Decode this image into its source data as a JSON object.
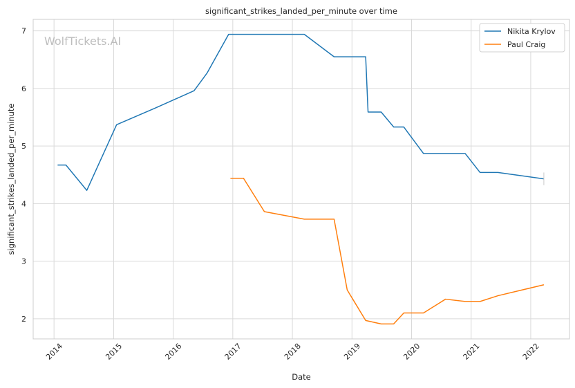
{
  "chart_data": {
    "type": "line",
    "title": "significant_strikes_landed_per_minute over time",
    "xlabel": "Date",
    "ylabel": "significant_strikes_landed_per_minute",
    "watermark": "WolfTickets.AI",
    "xlim": [
      2013.65,
      2022.65
    ],
    "ylim": [
      1.65,
      7.2
    ],
    "x_ticks": [
      {
        "value": 2014,
        "label": "2014"
      },
      {
        "value": 2015,
        "label": "2015"
      },
      {
        "value": 2016,
        "label": "2016"
      },
      {
        "value": 2017,
        "label": "2017"
      },
      {
        "value": 2018,
        "label": "2018"
      },
      {
        "value": 2019,
        "label": "2019"
      },
      {
        "value": 2020,
        "label": "2020"
      },
      {
        "value": 2021,
        "label": "2021"
      },
      {
        "value": 2022,
        "label": "2022"
      }
    ],
    "y_ticks": [
      {
        "value": 2,
        "label": "2"
      },
      {
        "value": 3,
        "label": "3"
      },
      {
        "value": 4,
        "label": "4"
      },
      {
        "value": 5,
        "label": "5"
      },
      {
        "value": 6,
        "label": "6"
      },
      {
        "value": 7,
        "label": "7"
      }
    ],
    "grid": true,
    "legend_position": "top-right",
    "series": [
      {
        "name": "Nikita Krylov",
        "color": "#1f77b4",
        "points": [
          [
            2014.06,
            4.67
          ],
          [
            2014.2,
            4.67
          ],
          [
            2014.55,
            4.23
          ],
          [
            2015.05,
            5.37
          ],
          [
            2015.7,
            5.66
          ],
          [
            2016.35,
            5.96
          ],
          [
            2016.57,
            6.27
          ],
          [
            2016.93,
            6.94
          ],
          [
            2018.2,
            6.94
          ],
          [
            2018.7,
            6.55
          ],
          [
            2019.23,
            6.55
          ],
          [
            2019.27,
            5.59
          ],
          [
            2019.49,
            5.59
          ],
          [
            2019.7,
            5.33
          ],
          [
            2019.87,
            5.33
          ],
          [
            2020.2,
            4.87
          ],
          [
            2020.9,
            4.87
          ],
          [
            2021.15,
            4.54
          ],
          [
            2021.45,
            4.54
          ],
          [
            2022.22,
            4.43
          ]
        ]
      },
      {
        "name": "Paul Craig",
        "color": "#ff7f0e",
        "points": [
          [
            2016.96,
            4.44
          ],
          [
            2017.18,
            4.44
          ],
          [
            2017.53,
            3.86
          ],
          [
            2018.2,
            3.73
          ],
          [
            2018.7,
            3.73
          ],
          [
            2018.92,
            2.5
          ],
          [
            2019.23,
            1.97
          ],
          [
            2019.49,
            1.91
          ],
          [
            2019.7,
            1.91
          ],
          [
            2019.87,
            2.1
          ],
          [
            2020.2,
            2.1
          ],
          [
            2020.57,
            2.34
          ],
          [
            2020.9,
            2.3
          ],
          [
            2021.15,
            2.3
          ],
          [
            2021.45,
            2.4
          ],
          [
            2022.22,
            2.59
          ]
        ]
      }
    ],
    "error_bars": [
      {
        "series": "Nikita Krylov",
        "x": 2022.22,
        "low": 4.32,
        "high": 4.54,
        "color": "#c8c8c8"
      }
    ]
  }
}
